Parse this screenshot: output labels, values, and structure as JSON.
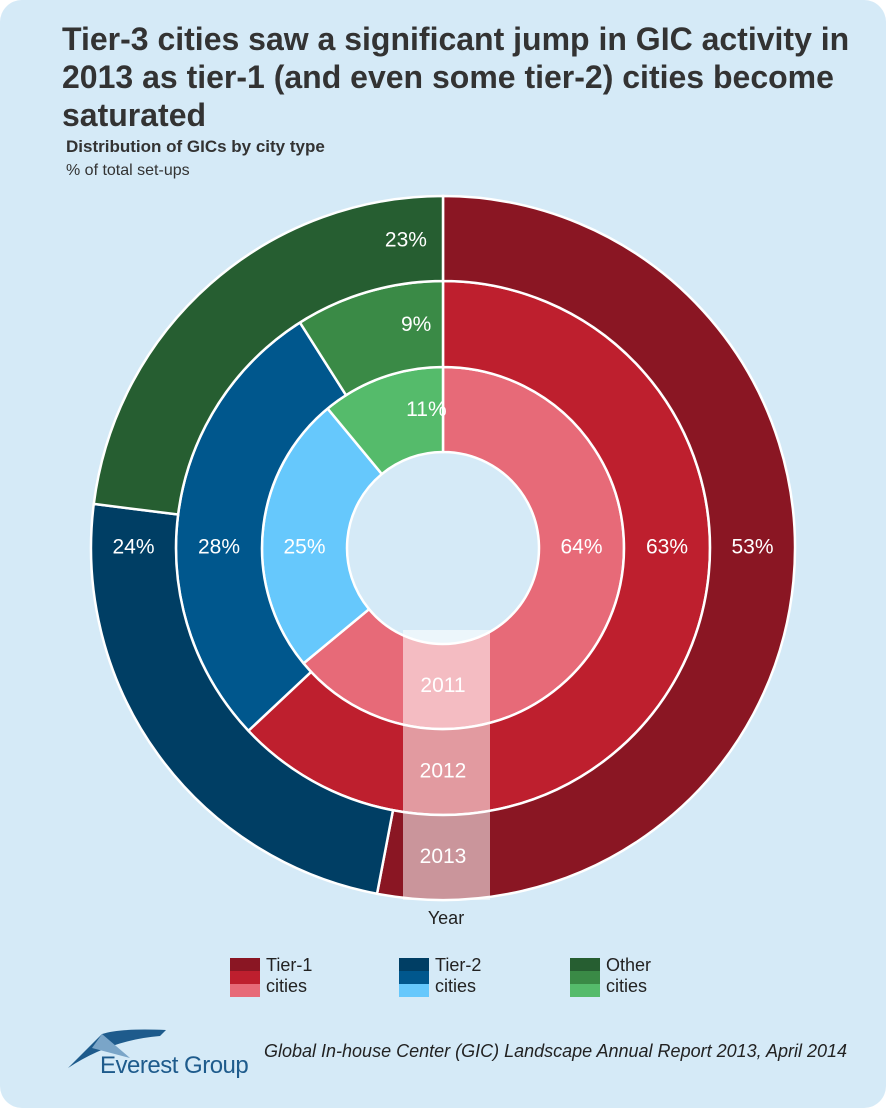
{
  "chart_data": {
    "type": "donut",
    "title": "Tier-3 cities saw a significant jump in GIC activity in 2013 as tier-1 (and even some tier-2) cities become saturated",
    "subtitle": "Distribution of GICs by city type",
    "unit_note": "% of total set-ups",
    "ring_axis_label": "Year",
    "categories": [
      "Tier-1 cities",
      "Tier-2 cities",
      "Other cities"
    ],
    "series": [
      {
        "name": "2011",
        "values": [
          64,
          25,
          11
        ],
        "value_labels": [
          "64%",
          "25%",
          "11%"
        ],
        "colors": [
          "#e76a78",
          "#66c8fc",
          "#55bb6b"
        ]
      },
      {
        "name": "2012",
        "values": [
          63,
          28,
          9
        ],
        "value_labels": [
          "63%",
          "28%",
          "9%"
        ],
        "colors": [
          "#be1f2e",
          "#00578d",
          "#3a8a46"
        ]
      },
      {
        "name": "2013",
        "values": [
          53,
          24,
          23
        ],
        "value_labels": [
          "53%",
          "24%",
          "23%"
        ],
        "colors": [
          "#8a1623",
          "#003e64",
          "#265e31"
        ]
      }
    ],
    "source": "Global In-house Center (GIC) Landscape Annual Report 2013, April 2014",
    "logo": "Everest Group"
  }
}
